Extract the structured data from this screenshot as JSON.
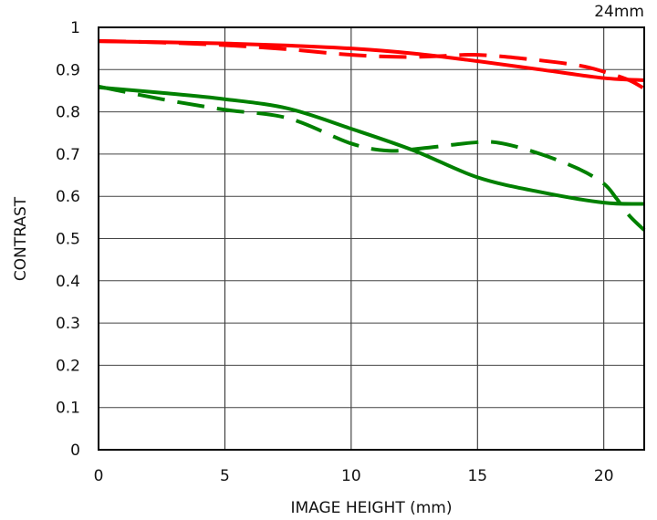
{
  "chart_data": {
    "type": "line",
    "title": "24mm",
    "xlabel": "IMAGE HEIGHT (mm)",
    "ylabel": "CONTRAST",
    "xlim": [
      0,
      21.6
    ],
    "ylim": [
      0,
      1
    ],
    "xticks": [
      0,
      5,
      10,
      15,
      20
    ],
    "yticks": [
      0,
      0.1,
      0.2,
      0.3,
      0.4,
      0.5,
      0.6,
      0.7,
      0.8,
      0.9,
      1
    ],
    "ytick_labels": [
      "0",
      "0.1",
      "0.2",
      "0.3",
      "0.4",
      "0.5",
      "0.6",
      "0.7",
      "0.8",
      "0.9",
      "1"
    ],
    "grid": true,
    "series": [
      {
        "name": "red-solid",
        "color": "#ff0000",
        "style": "solid",
        "x": [
          0,
          2.5,
          5,
          7.5,
          10,
          12.5,
          15,
          17.5,
          20,
          21.6
        ],
        "y": [
          0.967,
          0.965,
          0.962,
          0.957,
          0.95,
          0.938,
          0.92,
          0.9,
          0.88,
          0.875
        ]
      },
      {
        "name": "red-dashed",
        "color": "#ff0000",
        "style": "dashed",
        "x": [
          0,
          2.5,
          5,
          7.5,
          10,
          12,
          13.5,
          15,
          17,
          19,
          20,
          21,
          21.6
        ],
        "y": [
          0.968,
          0.964,
          0.958,
          0.948,
          0.935,
          0.93,
          0.932,
          0.935,
          0.925,
          0.91,
          0.895,
          0.875,
          0.855
        ]
      },
      {
        "name": "green-solid",
        "color": "#008000",
        "style": "solid",
        "x": [
          0,
          2.5,
          5,
          7.5,
          10,
          12.5,
          15,
          17.5,
          20,
          21.6
        ],
        "y": [
          0.858,
          0.845,
          0.83,
          0.808,
          0.76,
          0.708,
          0.645,
          0.61,
          0.585,
          0.582
        ]
      },
      {
        "name": "green-dashed",
        "color": "#008000",
        "style": "dashed",
        "x": [
          0,
          2.5,
          5,
          7.5,
          10,
          11.5,
          13,
          15,
          16,
          17.5,
          19,
          20,
          20.5,
          21,
          21.6
        ],
        "y": [
          0.86,
          0.83,
          0.805,
          0.785,
          0.725,
          0.708,
          0.715,
          0.728,
          0.725,
          0.7,
          0.665,
          0.63,
          0.595,
          0.555,
          0.52
        ]
      }
    ]
  }
}
